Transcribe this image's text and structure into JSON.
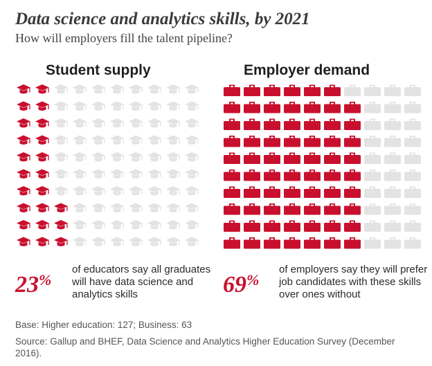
{
  "header": {
    "title": "Data science and analytics skills, by 2021",
    "subtitle": "How will employers fill the talent pipeline?"
  },
  "colors": {
    "highlight": "#c8102e",
    "muted": "#e3e3e3"
  },
  "chart_data": [
    {
      "type": "waffle",
      "name": "Student supply",
      "icon": "graduation-cap-icon",
      "rows": 10,
      "columns": 10,
      "value": 23,
      "percent_label": "23",
      "percent_symbol": "%",
      "description": "of educators say all graduates will have data science and analytics skills"
    },
    {
      "type": "waffle",
      "name": "Employer demand",
      "icon": "briefcase-icon",
      "rows": 10,
      "columns": 10,
      "value": 69,
      "percent_label": "69",
      "percent_symbol": "%",
      "description": "of employers say they will prefer job candidates with these skills over ones without"
    }
  ],
  "footer": {
    "base": "Base: Higher education: 127; Business: 63",
    "source": "Source: Gallup and BHEF, Data Science and Analytics Higher Education Survey (December 2016)."
  }
}
